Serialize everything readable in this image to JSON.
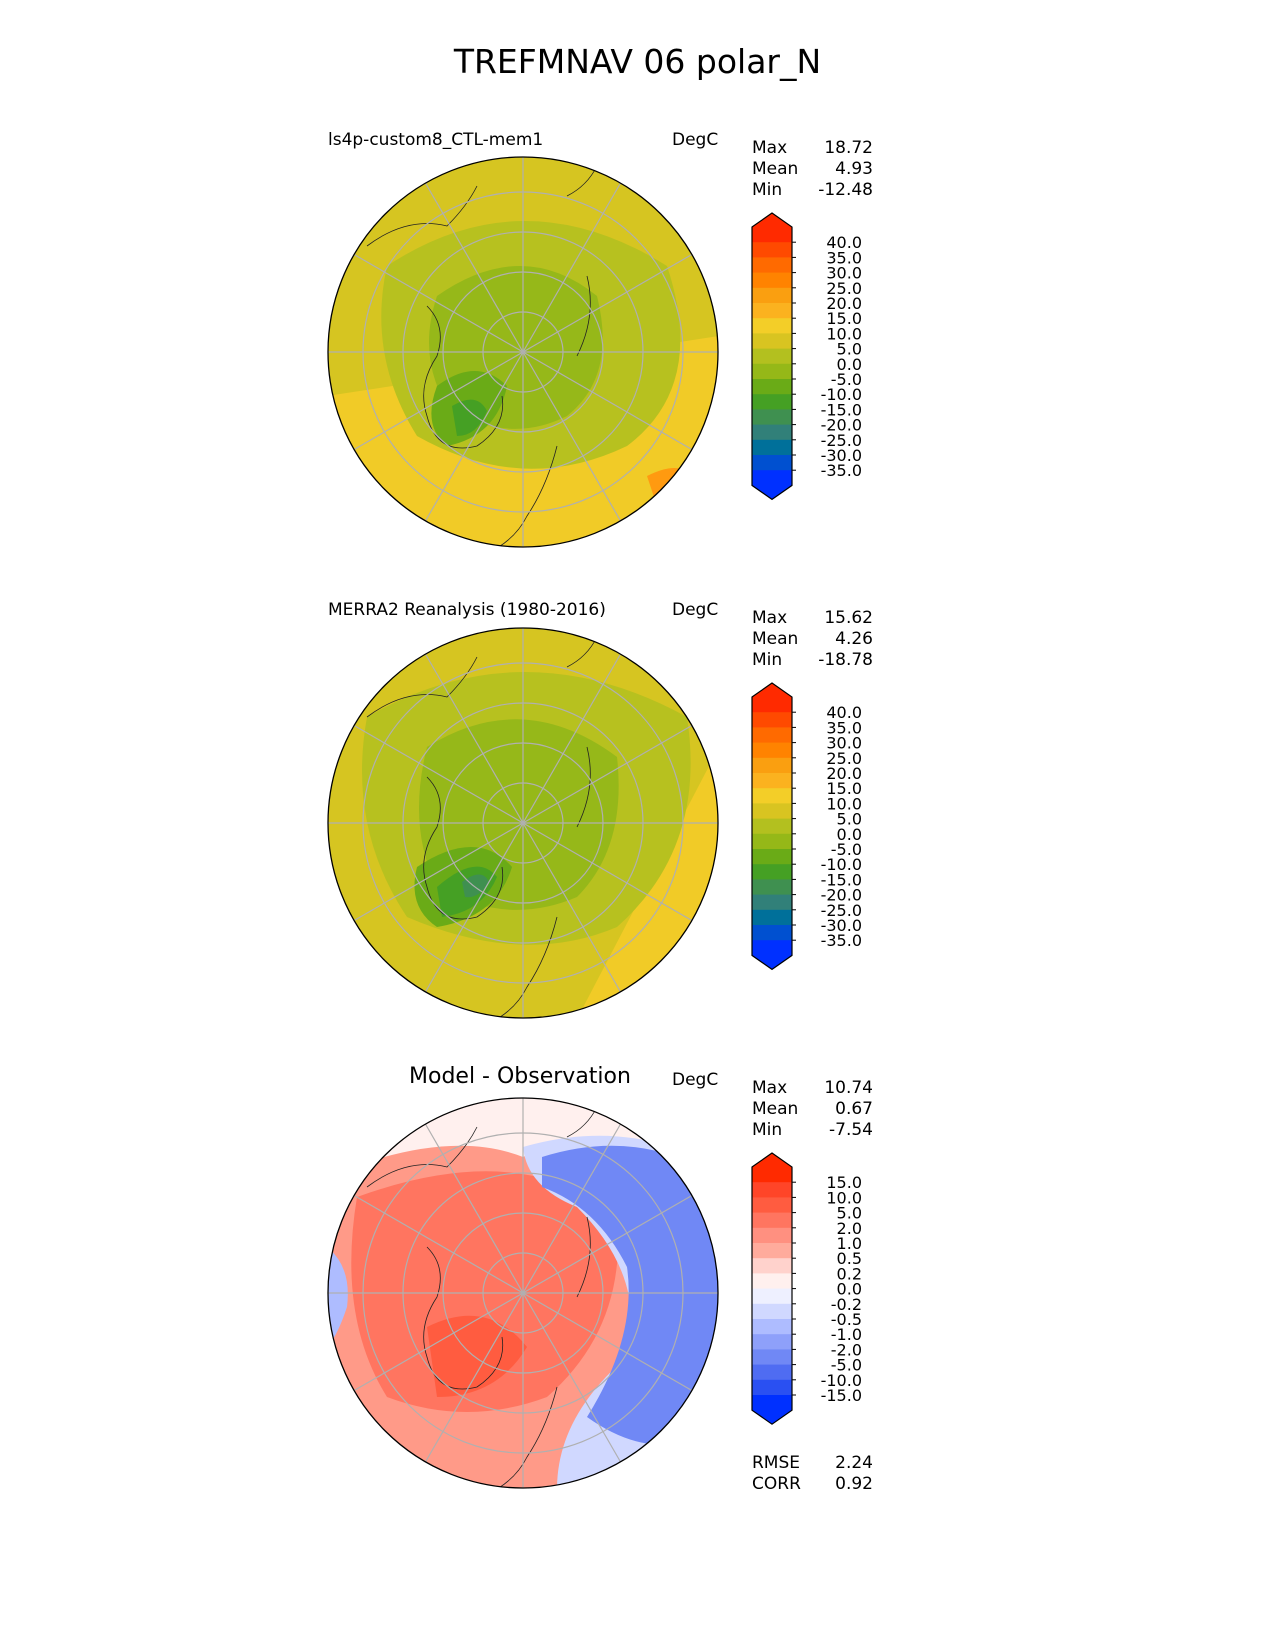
{
  "title": "TREFMNAV 06 polar_N",
  "panels": [
    {
      "label": "ls4p-custom8_CTL-mem1",
      "units": "DegC",
      "stats": {
        "max_label": "Max",
        "max": "18.72",
        "mean_label": "Mean",
        "mean": "4.93",
        "min_label": "Min",
        "min": "-12.48"
      }
    },
    {
      "label": "MERRA2 Reanalysis (1980-2016)",
      "units": "DegC",
      "stats": {
        "max_label": "Max",
        "max": "15.62",
        "mean_label": "Mean",
        "mean": "4.26",
        "min_label": "Min",
        "min": "-18.78"
      }
    },
    {
      "label": "Model - Observation",
      "units": "DegC",
      "stats": {
        "max_label": "Max",
        "max": "10.74",
        "mean_label": "Mean",
        "mean": "0.67",
        "min_label": "Min",
        "min": "-7.54"
      }
    }
  ],
  "colorbars": {
    "temp": {
      "ticks": [
        "40.0",
        "35.0",
        "30.0",
        "25.0",
        "20.0",
        "15.0",
        "10.0",
        "5.0",
        "0.0",
        "-5.0",
        "-10.0",
        "-15.0",
        "-20.0",
        "-25.0",
        "-30.0",
        "-35.0"
      ],
      "colors": [
        "#ff2a00",
        "#ff4a00",
        "#ff6a00",
        "#ff8300",
        "#fa9f10",
        "#fbb21f",
        "#f3ce28",
        "#d8c421",
        "#b3c01f",
        "#95b818",
        "#6aab17",
        "#45a024",
        "#3f9050",
        "#318079",
        "#00709a",
        "#0050d0",
        "#0030ff"
      ]
    },
    "diff": {
      "ticks": [
        "15.0",
        "10.0",
        "5.0",
        "2.0",
        "1.0",
        "0.5",
        "0.2",
        "0.0",
        "-0.2",
        "-0.5",
        "-1.0",
        "-2.0",
        "-5.0",
        "-10.0",
        "-15.0"
      ],
      "colors": [
        "#ff2a00",
        "#ff4528",
        "#ff5c40",
        "#ff7560",
        "#ff9080",
        "#ffab9c",
        "#ffd2cc",
        "#fff0ee",
        "#eef0ff",
        "#d0d8ff",
        "#aebcff",
        "#8ea0fa",
        "#7088f5",
        "#4f6cf2",
        "#2a50f2",
        "#0030ff"
      ]
    }
  },
  "metrics": {
    "rmse_label": "RMSE",
    "rmse": "2.24",
    "corr_label": "CORR",
    "corr": "0.92"
  }
}
